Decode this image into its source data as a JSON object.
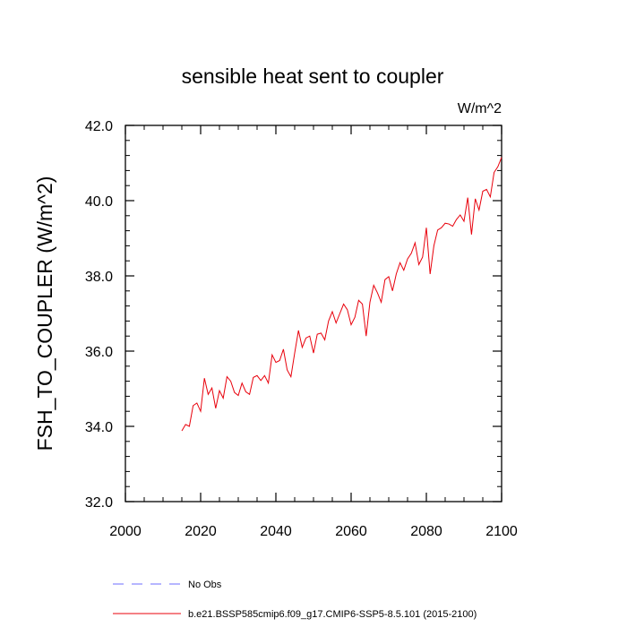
{
  "chart_data": {
    "type": "line",
    "title": "sensible heat sent to coupler",
    "units": "W/m^2",
    "xlabel": "",
    "ylabel": "FSH_TO_COUPLER  (W/m^2)",
    "xlim": [
      2000,
      2100
    ],
    "ylim": [
      32.0,
      42.0
    ],
    "x_ticks": [
      2000,
      2020,
      2040,
      2060,
      2080,
      2100
    ],
    "x_tick_labels": [
      "2000",
      "2020",
      "2040",
      "2060",
      "2080",
      "2100"
    ],
    "y_ticks": [
      32.0,
      34.0,
      36.0,
      38.0,
      40.0,
      42.0
    ],
    "y_tick_labels": [
      "32.0",
      "34.0",
      "36.0",
      "38.0",
      "40.0",
      "42.0"
    ],
    "grid": false,
    "legend_position": "bottom-left, below plot",
    "series": [
      {
        "name": "b.e21.BSSP585cmip6.f09_g17.CMIP6-SSP5-8.5.101 (2015-2100)",
        "color": "#e8000b",
        "style": "solid",
        "x": [
          2015,
          2016,
          2017,
          2018,
          2019,
          2020,
          2021,
          2022,
          2023,
          2024,
          2025,
          2026,
          2027,
          2028,
          2029,
          2030,
          2031,
          2032,
          2033,
          2034,
          2035,
          2036,
          2037,
          2038,
          2039,
          2040,
          2041,
          2042,
          2043,
          2044,
          2045,
          2046,
          2047,
          2048,
          2049,
          2050,
          2051,
          2052,
          2053,
          2054,
          2055,
          2056,
          2057,
          2058,
          2059,
          2060,
          2061,
          2062,
          2063,
          2064,
          2065,
          2066,
          2067,
          2068,
          2069,
          2070,
          2071,
          2072,
          2073,
          2074,
          2075,
          2076,
          2077,
          2078,
          2079,
          2080,
          2081,
          2082,
          2083,
          2084,
          2085,
          2086,
          2087,
          2088,
          2089,
          2090,
          2091,
          2092,
          2093,
          2094,
          2095,
          2096,
          2097,
          2098,
          2099,
          2100
        ],
        "values": [
          33.88,
          34.05,
          34.0,
          34.55,
          34.62,
          34.4,
          35.28,
          34.85,
          35.02,
          34.48,
          34.95,
          34.75,
          35.32,
          35.2,
          34.9,
          34.82,
          35.15,
          34.92,
          34.85,
          35.3,
          35.35,
          35.22,
          35.35,
          35.15,
          35.9,
          35.7,
          35.75,
          36.05,
          35.5,
          35.32,
          35.95,
          36.55,
          36.1,
          36.35,
          36.4,
          35.95,
          36.45,
          36.48,
          36.3,
          36.8,
          37.05,
          36.75,
          37.0,
          37.25,
          37.1,
          36.7,
          36.9,
          37.35,
          37.25,
          36.4,
          37.3,
          37.75,
          37.55,
          37.3,
          37.9,
          37.98,
          37.6,
          38.05,
          38.35,
          38.15,
          38.45,
          38.6,
          38.88,
          38.3,
          38.5,
          39.28,
          38.05,
          38.8,
          39.22,
          39.28,
          39.4,
          39.38,
          39.32,
          39.5,
          39.62,
          39.45,
          40.08,
          39.1,
          40.05,
          39.75,
          40.25,
          40.3,
          40.1,
          40.75,
          40.9,
          41.15
        ]
      },
      {
        "name": "No Obs",
        "color": "#6d6dff",
        "style": "dashed",
        "x": [],
        "values": []
      }
    ]
  }
}
